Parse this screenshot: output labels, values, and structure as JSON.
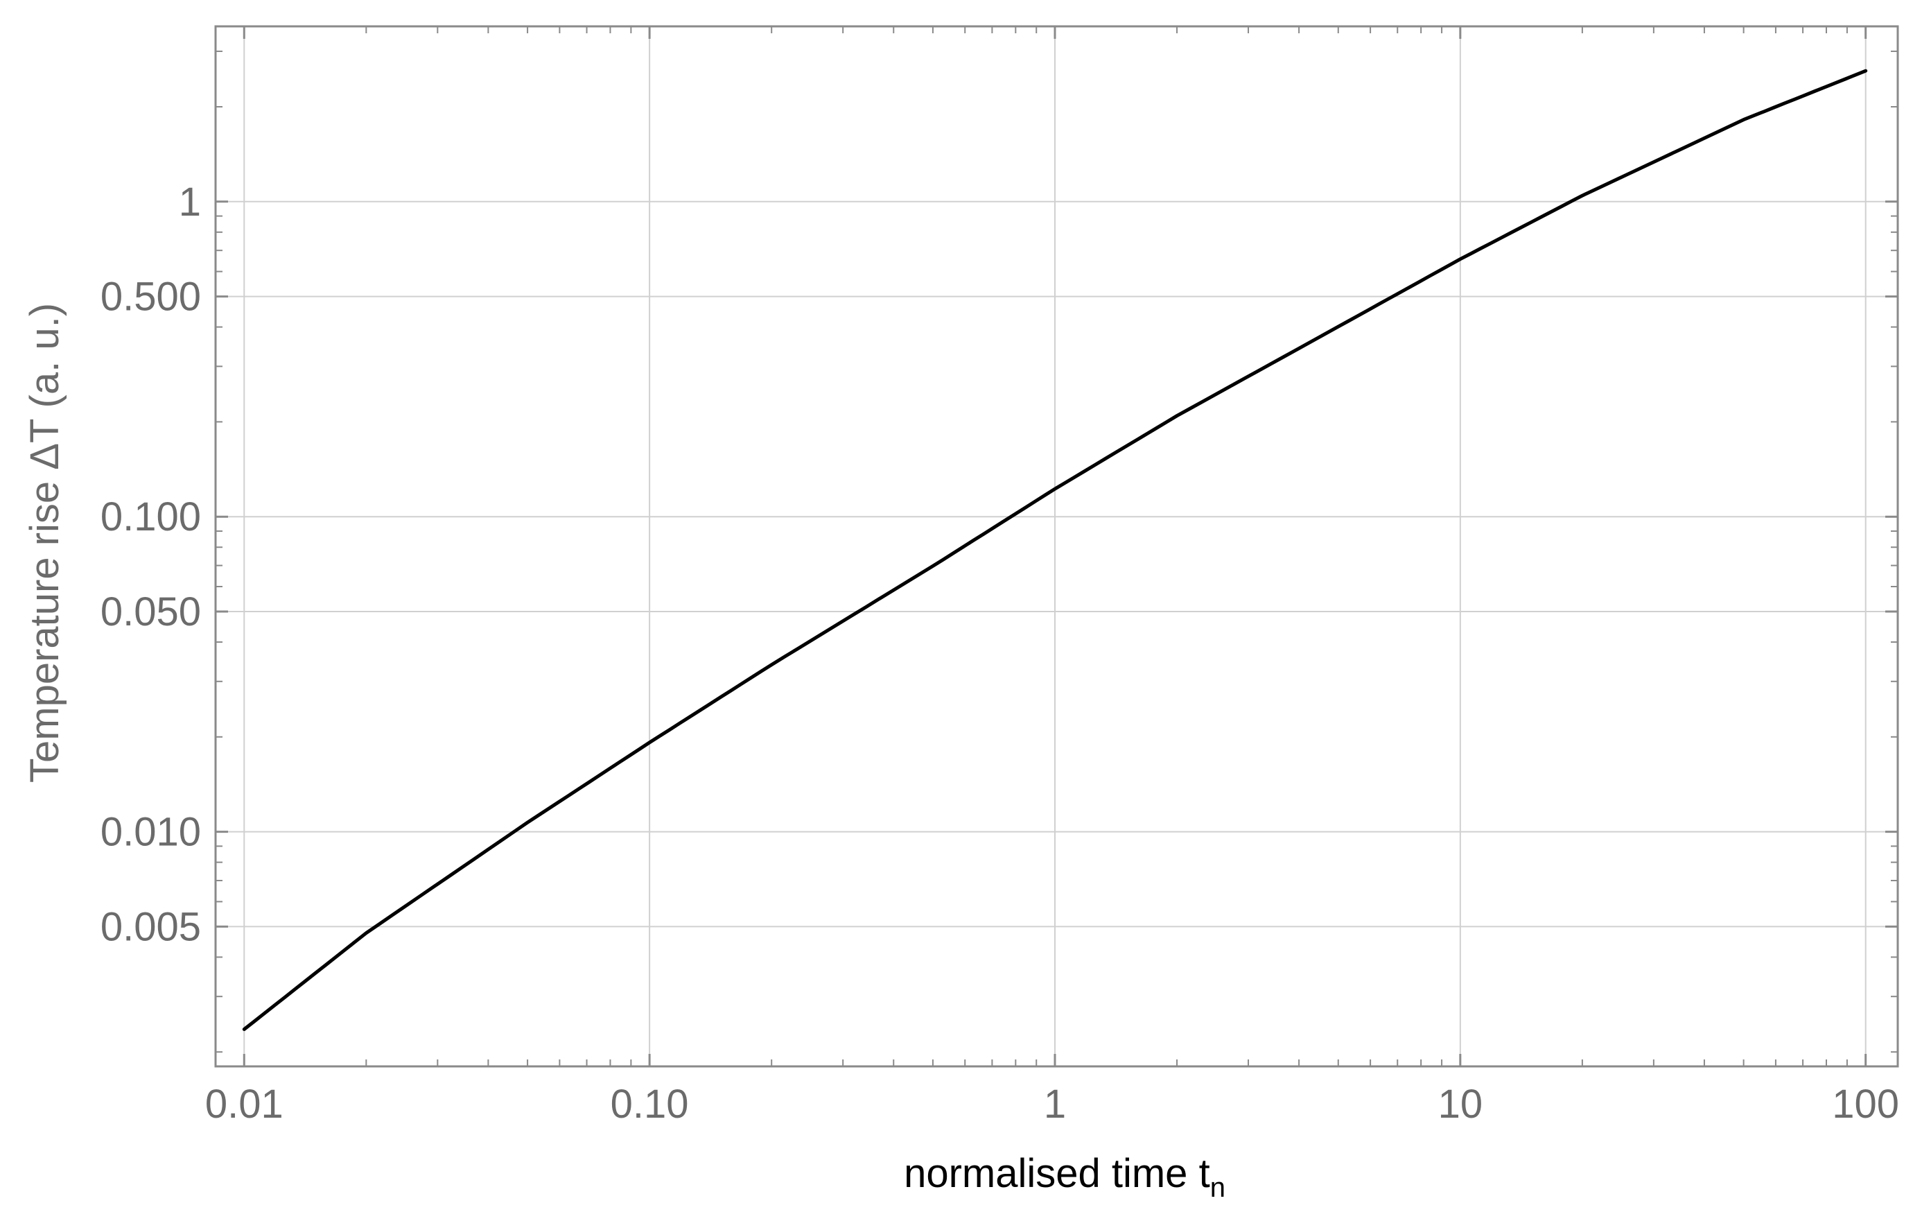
{
  "chart_data": {
    "type": "line",
    "title": "",
    "xlabel": "normalised time",
    "xlabel_symbol": "t",
    "xlabel_subscript": "n",
    "ylabel": "Temperature rise ΔT (a. u.)",
    "x_scale": "log",
    "y_scale": "log",
    "xlim": [
      0.0085,
      120
    ],
    "ylim": [
      0.0018,
      3.6
    ],
    "x_ticks": [
      {
        "value": 0.01,
        "label": "0.01"
      },
      {
        "value": 0.1,
        "label": "0.10"
      },
      {
        "value": 1,
        "label": "1"
      },
      {
        "value": 10,
        "label": "10"
      },
      {
        "value": 100,
        "label": "100"
      }
    ],
    "y_ticks": [
      {
        "value": 0.005,
        "label": "0.005"
      },
      {
        "value": 0.01,
        "label": "0.010"
      },
      {
        "value": 0.05,
        "label": "0.050"
      },
      {
        "value": 0.1,
        "label": "0.100"
      },
      {
        "value": 0.5,
        "label": "0.500"
      },
      {
        "value": 1,
        "label": "1"
      }
    ],
    "grid": true,
    "line_color": "#000000",
    "grid_color": "#d0d0d0",
    "frame_color": "#8a8a8a",
    "series": [
      {
        "x": [
          0.01,
          0.02,
          0.05,
          0.1,
          0.2,
          0.5,
          1,
          2,
          5,
          10,
          20,
          50,
          100
        ],
        "y": [
          0.00236,
          0.00477,
          0.0107,
          0.0192,
          0.0339,
          0.0697,
          0.1225,
          0.209,
          0.401,
          0.657,
          1.045,
          1.82,
          2.6
        ]
      }
    ]
  }
}
